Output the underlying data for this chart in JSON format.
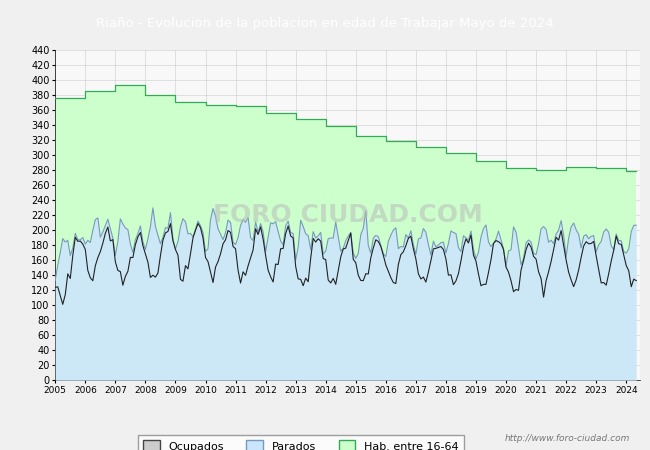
{
  "title": "Riaño - Evolucion de la poblacion en edad de Trabajar Mayo de 2024",
  "title_color": "white",
  "title_bg_color": "#4472C4",
  "ylim": [
    0,
    440
  ],
  "watermark": "http://www.foro-ciudad.com",
  "legend_labels": [
    "Ocupados",
    "Parados",
    "Hab. entre 16-64"
  ],
  "hab_color": "#ccffcc",
  "hab_edge_color": "#33aa55",
  "parados_color": "#cce5ff",
  "parados_edge_color": "#88aacc",
  "ocupados_color": "#222222",
  "grid_color": "#cccccc",
  "plot_bg": "#f0f0f0",
  "hab_yearly": {
    "2005": 375,
    "2006": 385,
    "2007": 393,
    "2008": 380,
    "2009": 370,
    "2010": 366,
    "2011": 365,
    "2012": 355,
    "2013": 348,
    "2014": 338,
    "2015": 325,
    "2016": 318,
    "2017": 310,
    "2018": 302,
    "2019": 292,
    "2020": 282,
    "2021": 280,
    "2022": 284,
    "2023": 283,
    "2024": 278
  }
}
